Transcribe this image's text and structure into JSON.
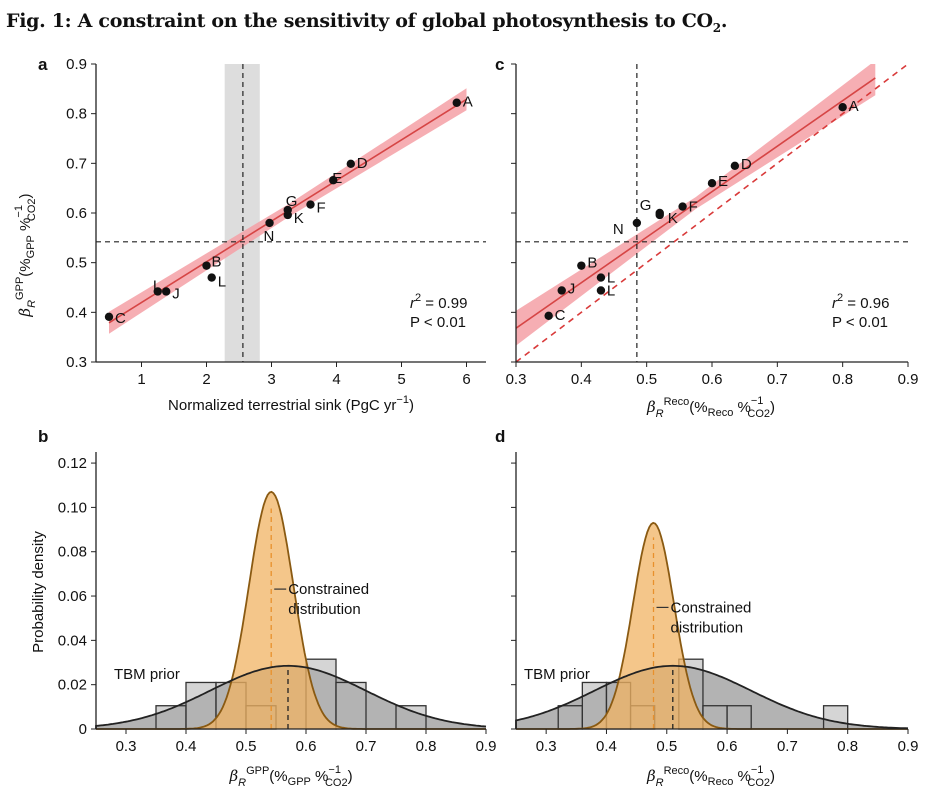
{
  "figure": {
    "title": "Fig. 1: A constraint on the sensitivity of global photosynthesis to CO",
    "title_sub": "2",
    "title_end": "."
  },
  "colors": {
    "band": "#f4a0a6",
    "fit_line": "#d64545",
    "dashed_red": "#d93a3a",
    "point": "#111111",
    "constrained_fill": "#f0b363",
    "constrained_stroke": "#8a5a12",
    "prior_fill": "#9a9a9a",
    "hist_fill": "#b3b3b3",
    "shade": "#dddddd"
  },
  "chart_data": [
    {
      "panel": "a",
      "type": "scatter",
      "xlabel": "Normalized terrestrial sink (PgC yr",
      "xlabel_sup": "−1",
      "xlabel_end": ")",
      "ylabel_base": "β",
      "ylabel_sub": "R",
      "ylabel_sup": "GPP",
      "ylabel_rest": "(%",
      "ylabel_sub2": "GPP",
      "ylabel_mid": " %",
      "ylabel_sup2": "−1",
      "ylabel_sub3": "CO2",
      "ylabel_end": ")",
      "xlim": [
        0.3,
        6.3
      ],
      "ylim": [
        0.3,
        0.9
      ],
      "xticks": [
        "1",
        "2",
        "3",
        "4",
        "5",
        "6"
      ],
      "yticks": [
        "0.3",
        "0.4",
        "0.5",
        "0.6",
        "0.7",
        "0.8",
        "0.9"
      ],
      "points": [
        {
          "label": "A",
          "x": 5.85,
          "y": 0.822
        },
        {
          "label": "C",
          "x": 0.5,
          "y": 0.391
        },
        {
          "label": "I",
          "x": 1.25,
          "y": 0.442
        },
        {
          "label": "J",
          "x": 1.38,
          "y": 0.442
        },
        {
          "label": "B",
          "x": 2.0,
          "y": 0.494
        },
        {
          "label": "L",
          "x": 2.08,
          "y": 0.47
        },
        {
          "label": "N",
          "x": 2.97,
          "y": 0.58
        },
        {
          "label": "K",
          "x": 3.25,
          "y": 0.596
        },
        {
          "label": "G",
          "x": 3.25,
          "y": 0.606
        },
        {
          "label": "F",
          "x": 3.6,
          "y": 0.617
        },
        {
          "label": "E",
          "x": 3.95,
          "y": 0.666
        },
        {
          "label": "D",
          "x": 4.22,
          "y": 0.699
        }
      ],
      "fit": {
        "x": [
          0.5,
          6.0
        ],
        "y": [
          0.379,
          0.829
        ]
      },
      "band_halfwidth": [
        0.022,
        0.013,
        0.022
      ],
      "hline": 0.542,
      "vline": 2.56,
      "vband": [
        2.28,
        2.82
      ],
      "r2_label": "r",
      "r2_sup": "2",
      "r2_value": " = 0.99",
      "p_value": "P < 0.01"
    },
    {
      "panel": "c",
      "type": "scatter",
      "xlabel_base": "β",
      "xlabel_sub": "R",
      "xlabel_sup": "Reco",
      "xlabel_rest": "(%",
      "xlabel_sub2": "Reco",
      "xlabel_mid": " %",
      "xlabel_sup2": "−1",
      "xlabel_sub3": "CO2",
      "xlabel_end": ")",
      "xlim": [
        0.3,
        0.9
      ],
      "ylim": [
        0.3,
        0.9
      ],
      "xticks": [
        "0.3",
        "0.4",
        "0.5",
        "0.6",
        "0.7",
        "0.8",
        "0.9"
      ],
      "points": [
        {
          "label": "A",
          "x": 0.8,
          "y": 0.813
        },
        {
          "label": "C",
          "x": 0.35,
          "y": 0.393
        },
        {
          "label": "J",
          "x": 0.37,
          "y": 0.444
        },
        {
          "label": "B",
          "x": 0.4,
          "y": 0.494
        },
        {
          "label": "L",
          "x": 0.43,
          "y": 0.47
        },
        {
          "label": "L",
          "x": 0.43,
          "y": 0.444
        },
        {
          "label": "N",
          "x": 0.485,
          "y": 0.58
        },
        {
          "label": "G",
          "x": 0.52,
          "y": 0.6
        },
        {
          "label": "K",
          "x": 0.52,
          "y": 0.596
        },
        {
          "label": "F",
          "x": 0.555,
          "y": 0.613
        },
        {
          "label": "E",
          "x": 0.6,
          "y": 0.66
        },
        {
          "label": "D",
          "x": 0.635,
          "y": 0.695
        }
      ],
      "fit": {
        "x": [
          0.3,
          0.85
        ],
        "y": [
          0.368,
          0.872
        ]
      },
      "band_halfwidth": [
        0.035,
        0.012,
        0.035
      ],
      "one_to_one": {
        "x": [
          0.3,
          0.9
        ],
        "y": [
          0.3,
          0.9
        ]
      },
      "hline": 0.542,
      "vline": 0.485,
      "r2_label": "r",
      "r2_sup": "2",
      "r2_value": " = 0.96",
      "p_value": "P < 0.01"
    },
    {
      "panel": "b",
      "type": "histogram",
      "ylabel": "Probability density",
      "xlabel_base": "β",
      "xlabel_sub": "R",
      "xlabel_sup": "GPP",
      "xlabel_rest": "(%",
      "xlabel_sub2": "GPP",
      "xlabel_mid": " %",
      "xlabel_sup2": "−1",
      "xlabel_sub3": "CO2",
      "xlabel_end": ")",
      "xlim": [
        0.25,
        0.9
      ],
      "ylim": [
        0,
        0.125
      ],
      "xticks": [
        "0.3",
        "0.4",
        "0.5",
        "0.6",
        "0.7",
        "0.8",
        "0.9"
      ],
      "yticks": [
        "0",
        "0.02",
        "0.04",
        "0.06",
        "0.08",
        "0.10",
        "0.12"
      ],
      "bins": [
        {
          "x0": 0.35,
          "x1": 0.4,
          "h": 0.0105
        },
        {
          "x0": 0.4,
          "x1": 0.45,
          "h": 0.021
        },
        {
          "x0": 0.45,
          "x1": 0.5,
          "h": 0.021
        },
        {
          "x0": 0.5,
          "x1": 0.55,
          "h": 0.0105
        },
        {
          "x0": 0.6,
          "x1": 0.65,
          "h": 0.0315
        },
        {
          "x0": 0.65,
          "x1": 0.7,
          "h": 0.021
        },
        {
          "x0": 0.75,
          "x1": 0.8,
          "h": 0.0105
        }
      ],
      "prior": {
        "mean": 0.57,
        "sd": 0.13,
        "peak": 0.0285
      },
      "constrained": {
        "mean": 0.542,
        "sd": 0.037,
        "peak": 0.107
      },
      "prior_label": "TBM prior",
      "constrained_label": [
        "Constrained",
        "distribution"
      ]
    },
    {
      "panel": "d",
      "type": "histogram",
      "xlabel_base": "β",
      "xlabel_sub": "R",
      "xlabel_sup": "Reco",
      "xlabel_rest": "(%",
      "xlabel_sub2": "Reco",
      "xlabel_mid": " %",
      "xlabel_sup2": "−1",
      "xlabel_sub3": "CO2",
      "xlabel_end": ")",
      "xlim": [
        0.25,
        0.9
      ],
      "ylim": [
        0,
        0.125
      ],
      "xticks": [
        "0.3",
        "0.4",
        "0.5",
        "0.6",
        "0.7",
        "0.8",
        "0.9"
      ],
      "bins": [
        {
          "x0": 0.32,
          "x1": 0.36,
          "h": 0.0105
        },
        {
          "x0": 0.36,
          "x1": 0.4,
          "h": 0.021
        },
        {
          "x0": 0.4,
          "x1": 0.44,
          "h": 0.021
        },
        {
          "x0": 0.44,
          "x1": 0.48,
          "h": 0.0105
        },
        {
          "x0": 0.52,
          "x1": 0.56,
          "h": 0.0315
        },
        {
          "x0": 0.56,
          "x1": 0.6,
          "h": 0.0105
        },
        {
          "x0": 0.6,
          "x1": 0.64,
          "h": 0.0105
        },
        {
          "x0": 0.76,
          "x1": 0.8,
          "h": 0.0105
        }
      ],
      "prior": {
        "mean": 0.51,
        "sd": 0.13,
        "peak": 0.0285
      },
      "constrained": {
        "mean": 0.478,
        "sd": 0.034,
        "peak": 0.093
      },
      "prior_label": "TBM prior",
      "constrained_label": [
        "Constrained",
        "distribution"
      ]
    }
  ]
}
